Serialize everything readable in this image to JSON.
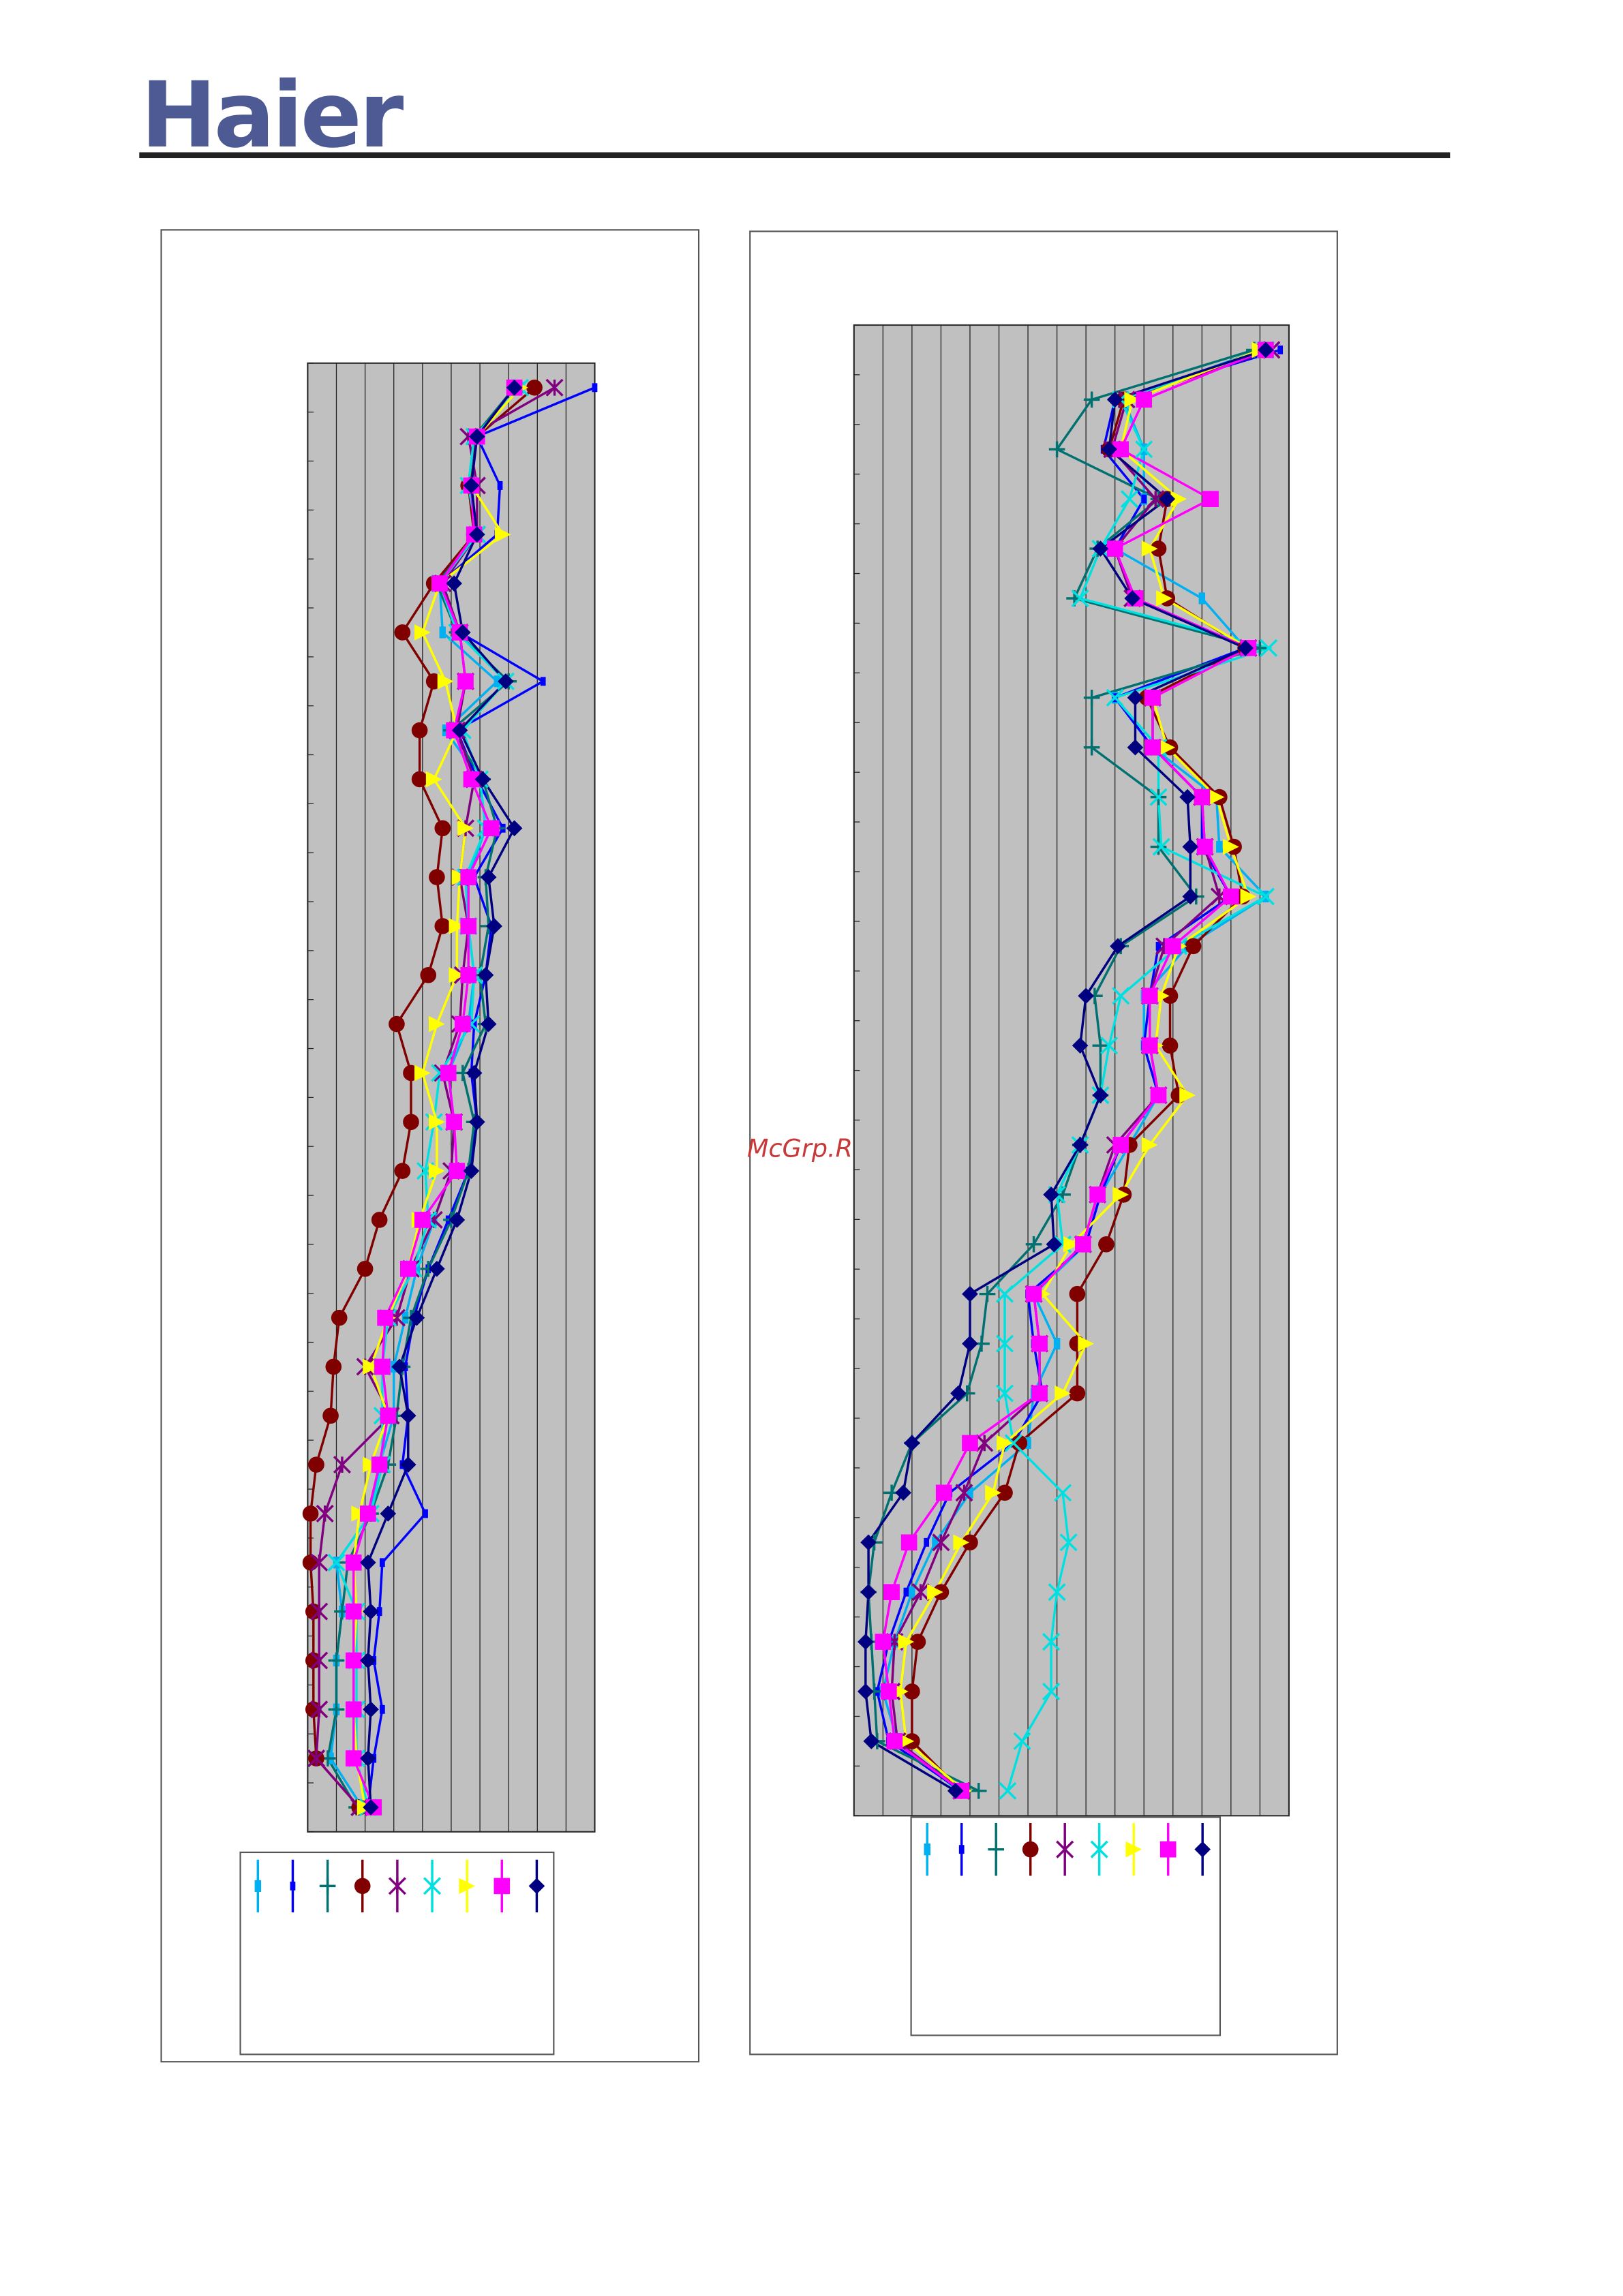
{
  "header": {
    "logo": "Haier"
  },
  "watermark": "McGrp.Ru",
  "chart_data": [
    {
      "type": "line",
      "orientation": "horizontal",
      "categories": [
        null,
        null,
        null,
        null,
        null,
        null,
        null,
        null,
        null,
        null,
        null,
        null,
        null,
        null,
        null,
        null,
        null,
        null,
        null,
        null,
        null,
        null,
        null,
        null,
        null,
        null,
        null,
        null,
        null,
        null
      ],
      "xlim": [
        0,
        100
      ],
      "xticks": [
        0,
        10,
        20,
        30,
        40,
        50,
        60,
        70,
        80,
        90,
        100
      ],
      "grid": true,
      "background": "#c0c0c0",
      "series": [
        {
          "color": "#00b0f0",
          "marker": "rect-small",
          "values": [
            74,
            59,
            57,
            59,
            46,
            47,
            66,
            48,
            60,
            62,
            56,
            56,
            58,
            56,
            49,
            51,
            50,
            44,
            38,
            34,
            30,
            30,
            25,
            22,
            10,
            12,
            10,
            10,
            8,
            19
          ]
        },
        {
          "color": "#0000ff",
          "marker": "dash",
          "values": [
            100,
            59,
            67,
            66,
            46,
            53,
            82,
            52,
            59,
            68,
            58,
            64,
            62,
            58,
            57,
            59,
            56,
            49,
            42,
            37,
            34,
            35,
            33,
            41,
            26,
            25,
            23,
            26,
            23,
            21
          ]
        },
        {
          "color": "#007070",
          "marker": "plus",
          "values": [
            72,
            58,
            56,
            58,
            45,
            52,
            70,
            50,
            61,
            66,
            62,
            63,
            60,
            62,
            54,
            58,
            56,
            50,
            42,
            36,
            33,
            31,
            28,
            22,
            14,
            12,
            10,
            10,
            7,
            17
          ]
        },
        {
          "color": "#800000",
          "marker": "circle",
          "values": [
            79,
            59,
            56,
            58,
            44,
            33,
            44,
            39,
            39,
            47,
            45,
            47,
            42,
            31,
            36,
            36,
            33,
            25,
            20,
            11,
            9,
            8,
            3,
            1,
            1,
            2,
            2,
            2,
            3,
            18
          ]
        },
        {
          "color": "#800080",
          "marker": "star",
          "values": [
            86,
            56,
            59,
            59,
            47,
            53,
            55,
            52,
            58,
            55,
            53,
            56,
            54,
            53,
            47,
            51,
            50,
            44,
            36,
            31,
            20,
            29,
            12,
            6,
            4,
            4,
            4,
            4,
            3,
            18
          ]
        },
        {
          "color": "#00e0e0",
          "marker": "x",
          "values": [
            74,
            58,
            56,
            59,
            46,
            52,
            69,
            54,
            60,
            62,
            55,
            56,
            58,
            57,
            46,
            44,
            41,
            42,
            37,
            28,
            26,
            26,
            26,
            22,
            10,
            17,
            17,
            17,
            17,
            21
          ]
        },
        {
          "color": "#ffff00",
          "marker": "triangle",
          "values": [
            74,
            59,
            57,
            68,
            46,
            40,
            48,
            52,
            44,
            55,
            53,
            52,
            52,
            45,
            40,
            45,
            45,
            39,
            35,
            28,
            22,
            28,
            22,
            18,
            16,
            17,
            16,
            16,
            17,
            20
          ]
        },
        {
          "color": "#ff00ff",
          "marker": "square",
          "values": [
            72,
            59,
            57,
            58,
            46,
            53,
            55,
            51,
            57,
            64,
            56,
            56,
            56,
            54,
            49,
            51,
            52,
            40,
            35,
            27,
            26,
            28,
            25,
            21,
            16,
            16,
            16,
            16,
            16,
            23
          ]
        },
        {
          "color": "#000080",
          "marker": "diamond",
          "values": [
            72,
            59,
            57,
            59,
            51,
            54,
            69,
            53,
            61,
            72,
            63,
            65,
            62,
            63,
            58,
            59,
            57,
            52,
            45,
            38,
            32,
            35,
            35,
            28,
            21,
            22,
            21,
            22,
            21,
            22
          ]
        }
      ]
    },
    {
      "type": "line",
      "orientation": "horizontal",
      "categories": [
        null,
        null,
        null,
        null,
        null,
        null,
        null,
        null,
        null,
        null,
        null,
        null,
        null,
        null,
        null,
        null,
        null,
        null,
        null,
        null,
        null,
        null,
        null,
        null,
        null,
        null,
        null,
        null,
        null,
        null
      ],
      "xlim": [
        0,
        150
      ],
      "xticks": [
        0,
        10,
        20,
        30,
        40,
        50,
        60,
        70,
        80,
        90,
        100,
        110,
        120,
        130,
        140,
        150
      ],
      "grid": true,
      "background": "#c0c0c0",
      "series": [
        {
          "color": "#00b0f0",
          "marker": "rect-small",
          "values": [
            140,
            93,
            100,
            100,
            90,
            120,
            135,
            90,
            103,
            125,
            126,
            142,
            115,
            100,
            100,
            105,
            95,
            85,
            80,
            62,
            70,
            62,
            60,
            40,
            28,
            20,
            14,
            10,
            15,
            36
          ]
        },
        {
          "color": "#0000ff",
          "marker": "dash",
          "values": [
            147,
            90,
            86,
            100,
            90,
            96,
            135,
            90,
            103,
            120,
            120,
            130,
            105,
            102,
            100,
            105,
            92,
            85,
            80,
            60,
            62,
            65,
            55,
            33,
            25,
            18,
            12,
            8,
            12,
            37
          ]
        },
        {
          "color": "#007070",
          "marker": "plus",
          "values": [
            138,
            82,
            70,
            105,
            84,
            76,
            140,
            82,
            82,
            105,
            105,
            118,
            92,
            83,
            85,
            85,
            78,
            72,
            62,
            46,
            44,
            39,
            20,
            13,
            7,
            5,
            6,
            7,
            8,
            43
          ]
        },
        {
          "color": "#800000",
          "marker": "circle",
          "values": [
            141,
            93,
            88,
            108,
            105,
            108,
            135,
            101,
            109,
            126,
            131,
            134,
            117,
            109,
            109,
            112,
            95,
            93,
            87,
            77,
            77,
            77,
            57,
            52,
            40,
            30,
            22,
            20,
            20,
            37
          ]
        },
        {
          "color": "#800080",
          "marker": "star",
          "values": [
            144,
            94,
            89,
            104,
            90,
            96,
            136,
            103,
            103,
            120,
            121,
            126,
            107,
            102,
            102,
            105,
            90,
            84,
            79,
            62,
            64,
            64,
            45,
            38,
            30,
            23,
            14,
            13,
            15,
            37
          ]
        },
        {
          "color": "#00e0e0",
          "marker": "x",
          "values": [
            142,
            92,
            100,
            95,
            85,
            78,
            143,
            90,
            105,
            105,
            106,
            142,
            112,
            92,
            88,
            85,
            78,
            70,
            72,
            52,
            52,
            52,
            55,
            72,
            74,
            70,
            68,
            68,
            58,
            53
          ]
        },
        {
          "color": "#ffff00",
          "marker": "triangle",
          "values": [
            140,
            96,
            92,
            112,
            102,
            107,
            136,
            103,
            108,
            125,
            130,
            136,
            112,
            106,
            104,
            115,
            102,
            92,
            75,
            65,
            80,
            72,
            52,
            48,
            37,
            28,
            18,
            16,
            18,
            38
          ]
        },
        {
          "color": "#ff00ff",
          "marker": "square",
          "values": [
            142,
            100,
            92,
            123,
            90,
            97,
            136,
            103,
            103,
            120,
            121,
            130,
            110,
            102,
            102,
            105,
            92,
            84,
            79,
            62,
            64,
            64,
            40,
            31,
            19,
            13,
            10,
            12,
            14,
            37
          ]
        },
        {
          "color": "#000080",
          "marker": "diamond",
          "values": [
            142,
            90,
            88,
            108,
            85,
            96,
            135,
            97,
            97,
            115,
            116,
            116,
            91,
            80,
            78,
            85,
            78,
            68,
            69,
            40,
            40,
            36,
            20,
            17,
            5,
            5,
            4,
            4,
            6,
            35
          ]
        }
      ]
    }
  ]
}
